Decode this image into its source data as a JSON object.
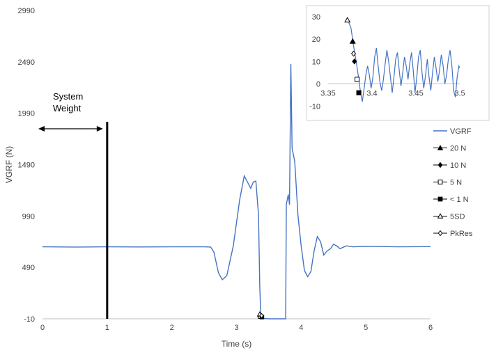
{
  "chart_data": [
    {
      "type": "line",
      "title": "",
      "xlabel": "Time (s)",
      "ylabel": "VGRF (N)",
      "xlim": [
        0,
        6
      ],
      "ylim": [
        -10,
        2990
      ],
      "xticks": [
        "0",
        "1",
        "2",
        "3",
        "4",
        "5",
        "6"
      ],
      "yticks": [
        "-10",
        "490",
        "990",
        "1490",
        "1990",
        "2490",
        "2990"
      ],
      "grid": false,
      "legend_position": "right",
      "series": [
        {
          "name": "VGRF",
          "color": "#4472c4",
          "points": [
            [
              0,
              690
            ],
            [
              0.5,
              688
            ],
            [
              1.0,
              690
            ],
            [
              1.5,
              689
            ],
            [
              2.0,
              690
            ],
            [
              2.5,
              690
            ],
            [
              2.6,
              688
            ],
            [
              2.65,
              640
            ],
            [
              2.72,
              440
            ],
            [
              2.78,
              370
            ],
            [
              2.85,
              410
            ],
            [
              2.95,
              700
            ],
            [
              3.05,
              1150
            ],
            [
              3.12,
              1380
            ],
            [
              3.17,
              1320
            ],
            [
              3.22,
              1260
            ],
            [
              3.26,
              1320
            ],
            [
              3.3,
              1330
            ],
            [
              3.34,
              1000
            ],
            [
              3.36,
              300
            ],
            [
              3.375,
              40
            ],
            [
              3.39,
              -5
            ],
            [
              3.5,
              -10
            ],
            [
              3.7,
              -10
            ],
            [
              3.76,
              -10
            ],
            [
              3.77,
              1100
            ],
            [
              3.8,
              1200
            ],
            [
              3.82,
              1100
            ],
            [
              3.84,
              2470
            ],
            [
              3.86,
              1650
            ],
            [
              3.9,
              1520
            ],
            [
              3.95,
              1000
            ],
            [
              4.0,
              700
            ],
            [
              4.05,
              460
            ],
            [
              4.1,
              400
            ],
            [
              4.15,
              450
            ],
            [
              4.2,
              650
            ],
            [
              4.25,
              790
            ],
            [
              4.3,
              740
            ],
            [
              4.35,
              610
            ],
            [
              4.4,
              650
            ],
            [
              4.45,
              670
            ],
            [
              4.5,
              715
            ],
            [
              4.55,
              700
            ],
            [
              4.6,
              672
            ],
            [
              4.7,
              700
            ],
            [
              4.8,
              690
            ],
            [
              5.0,
              695
            ],
            [
              5.5,
              690
            ],
            [
              6.0,
              692
            ]
          ]
        }
      ],
      "threshold_markers": [
        {
          "name": "20 N",
          "symbol": "triangle-filled",
          "x": 3.375,
          "y": 20
        },
        {
          "name": "10 N",
          "symbol": "diamond-filled",
          "x": 3.378,
          "y": 10
        },
        {
          "name": "5 N",
          "symbol": "square-open",
          "x": 3.38,
          "y": 5
        },
        {
          "name": "< 1 N",
          "symbol": "square-filled",
          "x": 3.382,
          "y": 0
        },
        {
          "name": "5SD",
          "symbol": "triangle-open",
          "x": 3.37,
          "y": 28
        },
        {
          "name": "PkRes",
          "symbol": "diamond-open",
          "x": 3.377,
          "y": 13
        }
      ],
      "annotations": [
        {
          "text_lines": [
            "System",
            "Weight"
          ],
          "marker": "vertical-line",
          "x": 1,
          "arrow_span": [
            0,
            1
          ]
        }
      ]
    },
    {
      "type": "line",
      "title": "",
      "inset": true,
      "xlim": [
        3.35,
        3.5
      ],
      "ylim": [
        -12,
        30
      ],
      "xticks": [
        "3.35",
        "3.4",
        "3.45",
        "3.5"
      ],
      "yticks": [
        "-10",
        "0",
        "10",
        "20",
        "30"
      ],
      "grid": false,
      "series": [
        {
          "name": "VGRF",
          "color": "#4472c4",
          "points": [
            [
              3.372,
              29
            ],
            [
              3.376,
              25
            ],
            [
              3.379,
              17
            ],
            [
              3.382,
              10
            ],
            [
              3.385,
              2
            ],
            [
              3.387,
              -4
            ],
            [
              3.389,
              -8
            ],
            [
              3.391,
              -2
            ],
            [
              3.393,
              4
            ],
            [
              3.395,
              8
            ],
            [
              3.397,
              4
            ],
            [
              3.399,
              -2
            ],
            [
              3.401,
              3
            ],
            [
              3.403,
              12
            ],
            [
              3.405,
              16
            ],
            [
              3.407,
              8
            ],
            [
              3.409,
              1
            ],
            [
              3.411,
              -3
            ],
            [
              3.413,
              2
            ],
            [
              3.415,
              9
            ],
            [
              3.417,
              15
            ],
            [
              3.419,
              10
            ],
            [
              3.421,
              3
            ],
            [
              3.423,
              -4
            ],
            [
              3.425,
              3
            ],
            [
              3.427,
              11
            ],
            [
              3.429,
              14
            ],
            [
              3.431,
              6
            ],
            [
              3.433,
              -1
            ],
            [
              3.435,
              5
            ],
            [
              3.437,
              12
            ],
            [
              3.439,
              8
            ],
            [
              3.441,
              2
            ],
            [
              3.443,
              9
            ],
            [
              3.445,
              14
            ],
            [
              3.447,
              6
            ],
            [
              3.449,
              -4
            ],
            [
              3.451,
              3
            ],
            [
              3.453,
              12
            ],
            [
              3.455,
              15
            ],
            [
              3.457,
              5
            ],
            [
              3.459,
              -2
            ],
            [
              3.461,
              4
            ],
            [
              3.463,
              11
            ],
            [
              3.465,
              3
            ],
            [
              3.467,
              -3
            ],
            [
              3.469,
              5
            ],
            [
              3.471,
              12
            ],
            [
              3.473,
              7
            ],
            [
              3.475,
              1
            ],
            [
              3.477,
              6
            ],
            [
              3.479,
              13
            ],
            [
              3.481,
              8
            ],
            [
              3.483,
              0
            ],
            [
              3.485,
              4
            ],
            [
              3.487,
              11
            ],
            [
              3.489,
              15
            ],
            [
              3.491,
              8
            ],
            [
              3.493,
              -3
            ],
            [
              3.495,
              -6
            ],
            [
              3.497,
              3
            ],
            [
              3.499,
              8
            ],
            [
              3.5,
              7
            ]
          ]
        }
      ],
      "threshold_markers": [
        {
          "name": "5SD",
          "symbol": "triangle-open",
          "x": 3.372,
          "y": 28.5
        },
        {
          "name": "20 N",
          "symbol": "triangle-filled",
          "x": 3.378,
          "y": 19
        },
        {
          "name": "PkRes",
          "symbol": "diamond-open",
          "x": 3.379,
          "y": 13.5
        },
        {
          "name": "10 N",
          "symbol": "diamond-filled",
          "x": 3.38,
          "y": 10
        },
        {
          "name": "5 N",
          "symbol": "square-open",
          "x": 3.383,
          "y": 2
        },
        {
          "name": "< 1 N",
          "symbol": "square-filled",
          "x": 3.385,
          "y": -4
        }
      ]
    }
  ],
  "legend": [
    {
      "label": "VGRF",
      "symbol": "line",
      "color": "#4472c4"
    },
    {
      "label": "20 N",
      "symbol": "triangle-filled",
      "color": "#000000"
    },
    {
      "label": "10 N",
      "symbol": "diamond-filled",
      "color": "#000000"
    },
    {
      "label": "5 N",
      "symbol": "square-open",
      "color": "#000000"
    },
    {
      "label": "< 1 N",
      "symbol": "square-filled",
      "color": "#000000"
    },
    {
      "label": "5SD",
      "symbol": "triangle-open",
      "color": "#000000"
    },
    {
      "label": "PkRes",
      "symbol": "diamond-open",
      "color": "#000000"
    }
  ]
}
